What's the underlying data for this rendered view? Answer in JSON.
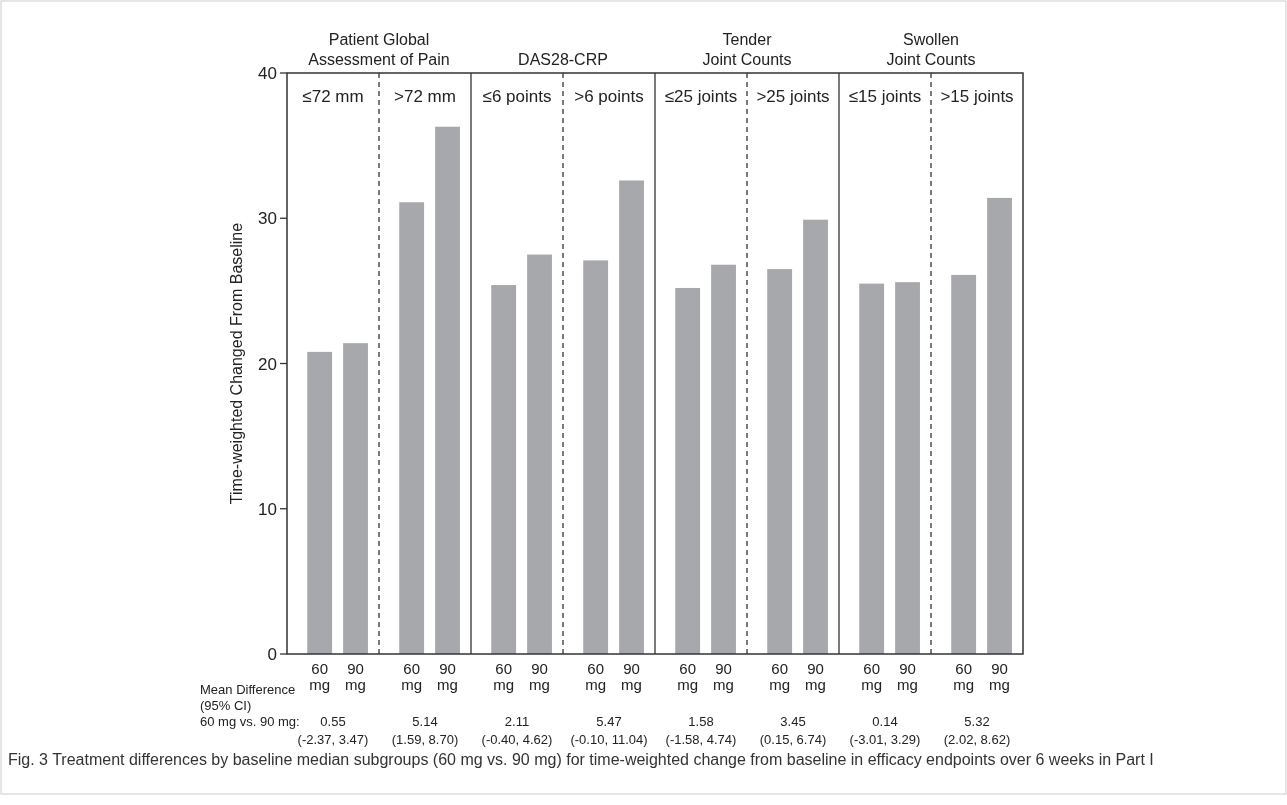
{
  "chart_data": {
    "type": "bar",
    "ylabel": "Time-weighted Changed From Baseline",
    "categories": [
      "60 mg",
      "90 mg",
      "60 mg",
      "90 mg",
      "60 mg",
      "90 mg",
      "60 mg",
      "90 mg",
      "60 mg",
      "90 mg",
      "60 mg",
      "90 mg",
      "60 mg",
      "90 mg",
      "60 mg",
      "90 mg"
    ],
    "values": [
      20.8,
      21.4,
      31.1,
      36.3,
      25.4,
      27.5,
      27.1,
      32.6,
      25.2,
      26.8,
      26.5,
      29.9,
      25.5,
      25.6,
      26.1,
      31.4
    ],
    "color": "#a7a8ac",
    "ylim": [
      0,
      40
    ],
    "yticks": [
      0,
      10,
      20,
      30,
      40
    ],
    "grid": false,
    "annotations": [
      "Patient Global\nAssessment of Pain",
      "DAS28-CRP",
      "Tender\nJoint Counts",
      "Swollen\nJoint Counts",
      "≤72 mm",
      ">72 mm",
      "≤6 points",
      ">6 points",
      "≤25 joints",
      ">25 joints",
      "≤15 joints",
      ">15 joints",
      "Mean Difference\n(95% CI)\n60 mg vs. 90 mg:",
      "0.55\n(-2.37, 3.47)",
      "5.14\n(1.59, 8.70)",
      "2.11\n(-0.40, 4.62)",
      "5.47\n(-0.10, 11.04)",
      "1.58\n(-1.58, 4.74)",
      "3.45\n(0.15, 6.74)",
      "0.14\n(-3.01, 3.29)",
      "5.32\n(2.02, 8.62)",
      "Fig. 3 Treatment differences by baseline median subgroups (60 mg vs. 90 mg) for time-weighted change from baseline in efficacy endpoints over 6 weeks in Part I"
    ]
  }
}
